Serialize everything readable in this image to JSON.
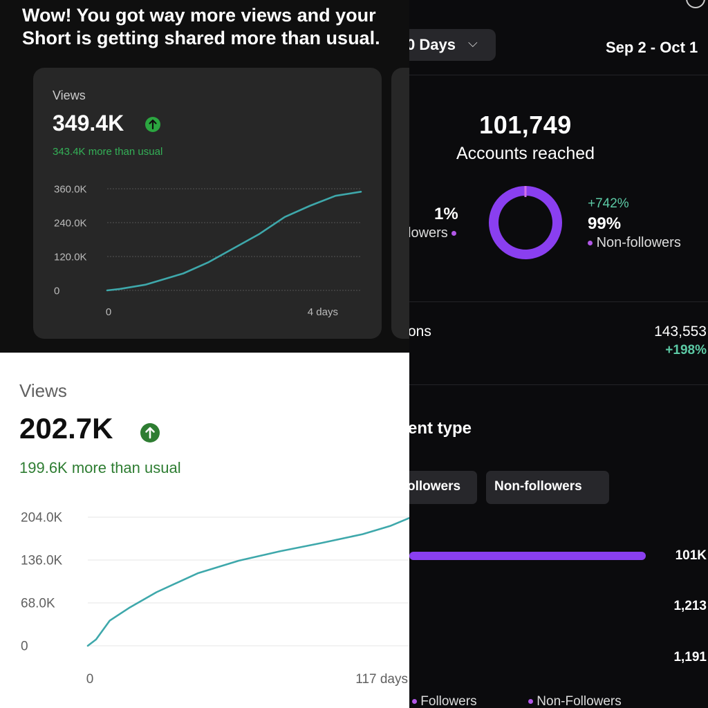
{
  "instagram": {
    "range_label": "0 Days",
    "date_range": "Sep 2 - Oct 1",
    "accounts_reached_value": "101,749",
    "accounts_reached_label": "Accounts reached",
    "followers_pct": "1%",
    "followers_label": "lowers",
    "non_followers_growth": "+742%",
    "non_followers_pct": "99%",
    "non_followers_label": "Non-followers",
    "impressions_label": "ons",
    "impressions_value": "143,553",
    "impressions_change": "+198%",
    "content_type_label": "tent type",
    "tab_followers": "ollowers",
    "tab_non_followers": "Non-followers",
    "bar_values": [
      "101K",
      "1,213",
      "1,191"
    ],
    "legend_followers": "Followers",
    "legend_non_followers": "Non-Followers",
    "accent_color": "#8a3ff0",
    "growth_color": "#5ccaa5",
    "donut_non_follower_share": 0.99
  },
  "youtube_dark": {
    "headline": "Wow! You got way more views and your Short is getting shared more than usual.",
    "headline_line1": "Wow! You got way more views and your",
    "headline_line2": "Short is getting shared more than usual.",
    "card_title": "Views",
    "value": "349.4K",
    "delta_text": "343.4K more than usual",
    "chart_data": {
      "type": "line",
      "title": "",
      "xlabel": "",
      "ylabel": "",
      "yticks": [
        "0",
        "120.0K",
        "240.0K",
        "360.0K"
      ],
      "xticks": [
        "0",
        "4 days"
      ],
      "ylim": [
        0,
        360000
      ],
      "xlim": [
        0,
        4
      ],
      "series": [
        {
          "x": [
            0,
            0.2,
            0.6,
            1.2,
            1.6,
            2.0,
            2.4,
            2.8,
            3.2,
            3.6,
            4.0
          ],
          "values": [
            0,
            5000,
            20000,
            60000,
            100000,
            150000,
            200000,
            260000,
            300000,
            335000,
            349400
          ]
        }
      ],
      "line_color": "#3ea8ab",
      "grid": true
    }
  },
  "youtube_light": {
    "card_title": "Views",
    "value": "202.7K",
    "delta_text": "199.6K more than usual",
    "chart_data": {
      "type": "line",
      "title": "",
      "xlabel": "",
      "ylabel": "",
      "yticks": [
        "0",
        "68.0K",
        "136.0K",
        "204.0K"
      ],
      "xticks": [
        "0",
        "117 days"
      ],
      "ylim": [
        0,
        204000
      ],
      "xlim": [
        0,
        117
      ],
      "series": [
        {
          "x": [
            0,
            3,
            8,
            15,
            25,
            40,
            55,
            70,
            85,
            100,
            110,
            117
          ],
          "values": [
            0,
            10000,
            40000,
            60000,
            85000,
            115000,
            135000,
            150000,
            163000,
            177000,
            190000,
            202700
          ]
        }
      ],
      "line_color": "#3ea8ab",
      "grid": true
    }
  }
}
